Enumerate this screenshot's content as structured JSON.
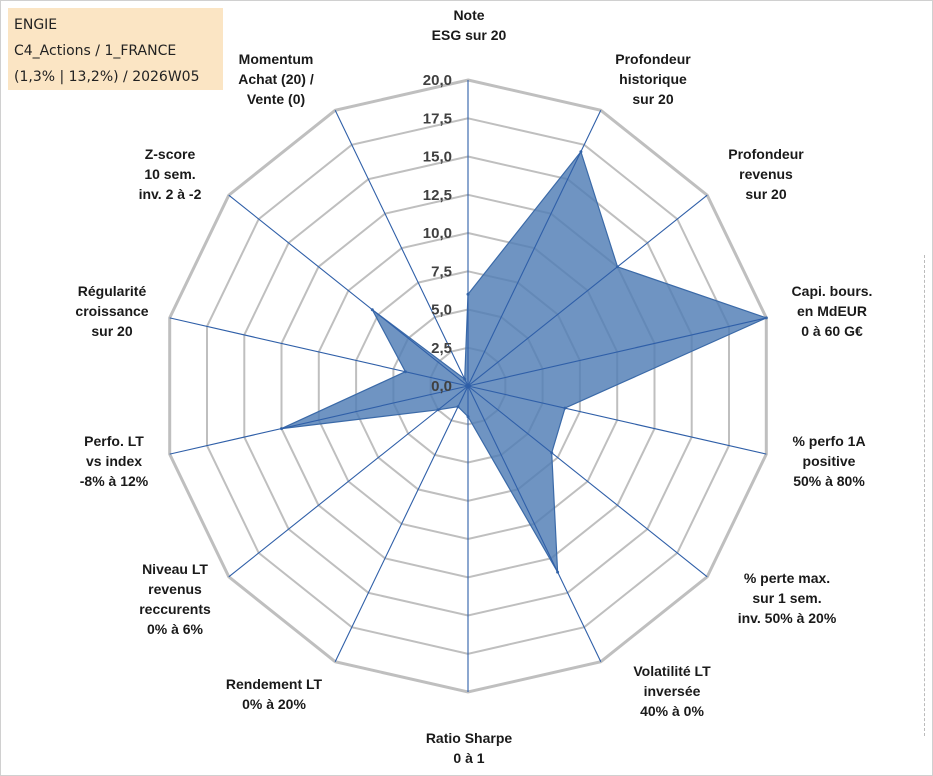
{
  "info": {
    "line1": "ENGIE",
    "line2": "C4_Actions / 1_FRANCE",
    "line3": "(1,3% | 13,2%) / 2026W05"
  },
  "colors": {
    "fill": "#4f7cb5",
    "stroke": "#3b6aa8",
    "axis": "#2f5fa8",
    "grid": "#bfbfbf"
  },
  "chart_data": {
    "type": "radar",
    "rmax": 20,
    "tick_labels": [
      "0,0",
      "2,5",
      "5,0",
      "7,5",
      "10,0",
      "12,5",
      "15,0",
      "17,5",
      "20,0"
    ],
    "axes": [
      {
        "label": [
          "Note",
          "ESG sur 20"
        ],
        "value": 6.0
      },
      {
        "label": [
          "Profondeur",
          "historique",
          "sur 20"
        ],
        "value": 17.0
      },
      {
        "label": [
          "Profondeur",
          "revenus",
          "sur 20"
        ],
        "value": 12.5
      },
      {
        "label": [
          "Capi. bours.",
          "en MdEUR",
          "0 à 60 G€"
        ],
        "value": 20.0
      },
      {
        "label": [
          "% perfo 1A",
          "positive",
          "50% à 80%"
        ],
        "value": 6.5
      },
      {
        "label": [
          "% perte max.",
          "sur 1 sem.",
          "inv. 50% à 20%"
        ],
        "value": 7.0
      },
      {
        "label": [
          "Volatilité LT",
          "inversée",
          "40% à 0%"
        ],
        "value": 13.5
      },
      {
        "label": [
          "Ratio Sharpe",
          "0 à 1"
        ],
        "value": 2.0
      },
      {
        "label": [
          "Rendement LT",
          "0% à 20%"
        ],
        "value": 1.5
      },
      {
        "label": [
          "Niveau LT",
          "revenus",
          "reccurents",
          "0% à 6%"
        ],
        "value": 2.5
      },
      {
        "label": [
          "Perfo. LT",
          "vs index",
          "-8% à 12%"
        ],
        "value": 12.5
      },
      {
        "label": [
          "Régularité",
          "croissance",
          "sur 20"
        ],
        "value": 4.2
      },
      {
        "label": [
          "Z-score",
          "10 sem.",
          "inv. 2 à -2"
        ],
        "value": 8.0
      },
      {
        "label": [
          "Momentum",
          "Achat (20) /",
          "Vente (0)"
        ],
        "value": 0.5
      }
    ]
  }
}
